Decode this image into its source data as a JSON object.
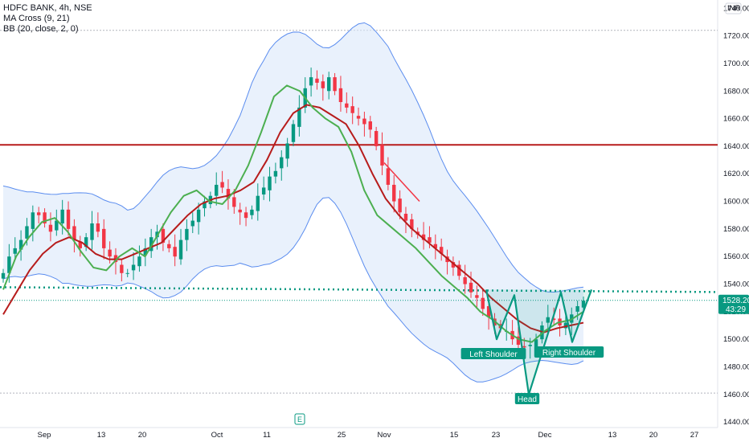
{
  "legend": {
    "symbol": "HDFC BANK, 4h, NSE",
    "ma_cross": "MA Cross (9, 21)",
    "bb": "BB (20, close, 2, 0)"
  },
  "currency": "INR",
  "price_tag": {
    "price": "1528.20",
    "countdown": "43:29",
    "value": 1528.2
  },
  "earnings_marker": "E",
  "colors": {
    "up": "#089981",
    "down": "#f23645",
    "ma_fast": "#4caf50",
    "ma_slow": "#b71c1c",
    "bb_band": "#5b8def",
    "bb_fill": "#dbe8fa",
    "resistance": "#b71c1c",
    "neckline": "#089981",
    "pattern": "#089981"
  },
  "chart_data": {
    "type": "candlestick",
    "y_ticks": [
      1440,
      1460,
      1480,
      1500,
      1520,
      1540,
      1560,
      1580,
      1600,
      1620,
      1640,
      1660,
      1680,
      1700,
      1720,
      1740
    ],
    "ylim": [
      1436,
      1746
    ],
    "x_ticks": [
      "Sep",
      "13",
      "20",
      "Oct",
      "11",
      "25",
      "Nov",
      "15",
      "23",
      "Dec",
      "13",
      "20",
      "27"
    ],
    "resistance_level": 1641,
    "neckline_level": 1536,
    "head_and_shoulders_labels": {
      "left": "Left Shoulder",
      "head": "Head",
      "right": "Right Shoulder"
    },
    "head_and_shoulders_points": [
      [
        1536,
        1500
      ],
      [
        1500,
        1532
      ],
      [
        1532,
        1460
      ],
      [
        1460,
        1534
      ],
      [
        1534,
        1498
      ],
      [
        1498,
        1536
      ]
    ],
    "closes": [
      1548,
      1560,
      1566,
      1572,
      1582,
      1592,
      1590,
      1584,
      1578,
      1586,
      1594,
      1580,
      1572,
      1566,
      1574,
      1584,
      1578,
      1566,
      1560,
      1556,
      1548,
      1548,
      1554,
      1560,
      1566,
      1574,
      1578,
      1570,
      1566,
      1560,
      1572,
      1580,
      1586,
      1594,
      1600,
      1604,
      1612,
      1610,
      1602,
      1596,
      1592,
      1588,
      1594,
      1604,
      1610,
      1618,
      1622,
      1632,
      1642,
      1656,
      1668,
      1682,
      1690,
      1686,
      1682,
      1690,
      1680,
      1672,
      1668,
      1664,
      1660,
      1656,
      1652,
      1640,
      1626,
      1612,
      1600,
      1592,
      1586,
      1580,
      1576,
      1572,
      1570,
      1566,
      1562,
      1556,
      1552,
      1546,
      1540,
      1534,
      1530,
      1522,
      1516,
      1510,
      1508,
      1506,
      1500,
      1496,
      1494,
      1496,
      1500,
      1510,
      1516,
      1514,
      1510,
      1512,
      1518,
      1524,
      1528
    ],
    "ma_fast_sample": [
      1536,
      1560,
      1574,
      1585,
      1588,
      1578,
      1564,
      1552,
      1550,
      1560,
      1566,
      1560,
      1576,
      1592,
      1604,
      1608,
      1600,
      1598,
      1608,
      1626,
      1650,
      1676,
      1684,
      1680,
      1668,
      1660,
      1654,
      1636,
      1608,
      1590,
      1582,
      1574,
      1566,
      1556,
      1546,
      1538,
      1530,
      1520,
      1514,
      1506,
      1500,
      1498,
      1506,
      1512,
      1514,
      1520
    ],
    "ma_slow_sample": [
      1518,
      1534,
      1550,
      1562,
      1570,
      1574,
      1570,
      1562,
      1558,
      1558,
      1562,
      1566,
      1570,
      1580,
      1590,
      1598,
      1602,
      1604,
      1608,
      1614,
      1630,
      1650,
      1664,
      1670,
      1668,
      1662,
      1656,
      1640,
      1620,
      1602,
      1590,
      1580,
      1572,
      1564,
      1556,
      1548,
      1540,
      1530,
      1522,
      1514,
      1508,
      1505,
      1508,
      1510,
      1512
    ]
  }
}
